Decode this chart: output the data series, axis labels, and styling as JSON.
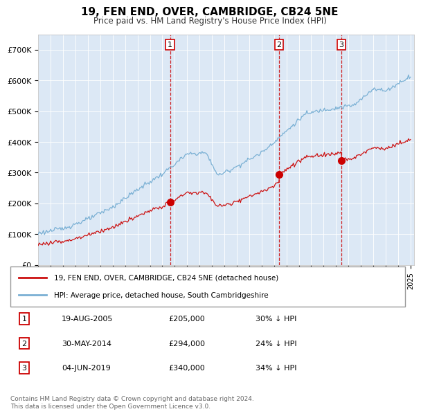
{
  "title": "19, FEN END, OVER, CAMBRIDGE, CB24 5NE",
  "subtitle": "Price paid vs. HM Land Registry's House Price Index (HPI)",
  "plot_bg_color": "#dce8f5",
  "ylim": [
    0,
    750000
  ],
  "yticks": [
    0,
    100000,
    200000,
    300000,
    400000,
    500000,
    600000,
    700000
  ],
  "ytick_labels": [
    "£0",
    "£100K",
    "£200K",
    "£300K",
    "£400K",
    "£500K",
    "£600K",
    "£700K"
  ],
  "sale_prices": [
    205000,
    294000,
    340000
  ],
  "sale_labels": [
    "1",
    "2",
    "3"
  ],
  "sale_info": [
    {
      "label": "1",
      "date": "19-AUG-2005",
      "price": "£205,000",
      "hpi": "30% ↓ HPI"
    },
    {
      "label": "2",
      "date": "30-MAY-2014",
      "price": "£294,000",
      "hpi": "24% ↓ HPI"
    },
    {
      "label": "3",
      "date": "04-JUN-2019",
      "price": "£340,000",
      "hpi": "34% ↓ HPI"
    }
  ],
  "legend_line1": "19, FEN END, OVER, CAMBRIDGE, CB24 5NE (detached house)",
  "legend_line2": "HPI: Average price, detached house, South Cambridgeshire",
  "footer": "Contains HM Land Registry data © Crown copyright and database right 2024.\nThis data is licensed under the Open Government Licence v3.0.",
  "vline_color": "#cc0000",
  "sale_marker_color": "#cc0000",
  "hpi_line_color": "#7ab0d4",
  "price_line_color": "#cc1111",
  "start_year": 1995,
  "end_year": 2025,
  "hpi_control_years": [
    1995,
    1997,
    1999,
    2001,
    2003,
    2005,
    2007,
    2008.5,
    2009.5,
    2011,
    2013,
    2015,
    2016.5,
    2018,
    2019,
    2020.5,
    2021.5,
    2022,
    2023,
    2024,
    2025
  ],
  "hpi_control_vals": [
    103000,
    118000,
    148000,
    188000,
    245000,
    295000,
    360000,
    365000,
    290000,
    320000,
    365000,
    435000,
    490000,
    505000,
    510000,
    520000,
    555000,
    575000,
    565000,
    590000,
    615000
  ],
  "sale_decimal": [
    2005.63,
    2014.41,
    2019.42
  ]
}
